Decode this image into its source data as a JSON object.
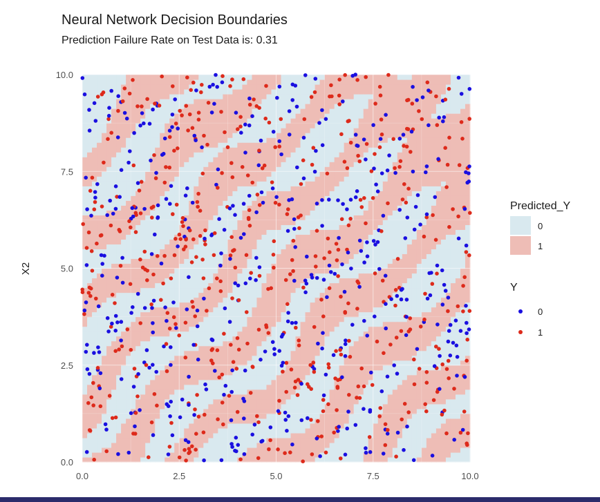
{
  "chart_data": {
    "type": "scatter",
    "title": "Neural Network Decision Boundaries",
    "subtitle": "Prediction Failure Rate on Test Data is: 0.31",
    "xlabel": "",
    "ylabel": "X2",
    "xlim": [
      0,
      10
    ],
    "ylim": [
      0,
      10
    ],
    "x_ticks": [
      "0.0",
      "2.5",
      "5.0",
      "7.5",
      "10.0"
    ],
    "y_ticks": [
      "0.0",
      "2.5",
      "5.0",
      "7.5",
      "10.0"
    ],
    "grid": true,
    "background_layer": {
      "name": "Predicted_Y",
      "description_type": "decision-regions",
      "classes": [
        "0",
        "1"
      ],
      "colors": {
        "0": "#d9e9ef",
        "1": "#eebdb6"
      },
      "class1_diagonal_bands": [
        {
          "offset": 7.8,
          "halfwidth": 0.55
        },
        {
          "offset": 5.6,
          "halfwidth": 0.6
        },
        {
          "offset": 3.6,
          "halfwidth": 0.55
        },
        {
          "offset": 1.6,
          "halfwidth": 0.5
        },
        {
          "offset": -0.4,
          "halfwidth": 0.6
        },
        {
          "offset": -2.4,
          "halfwidth": 0.55
        },
        {
          "offset": -4.5,
          "halfwidth": 0.6
        },
        {
          "offset": -6.6,
          "halfwidth": 0.55
        },
        {
          "offset": -8.6,
          "halfwidth": 0.5
        }
      ]
    },
    "series": [
      {
        "name": "0",
        "color": "#1a0fe0"
      },
      {
        "name": "1",
        "color": "#dd2a1b"
      }
    ],
    "points_per_class_approx": 500,
    "legend": {
      "position": "right",
      "groups": [
        {
          "title": "Predicted_Y",
          "entries": [
            "0",
            "1"
          ]
        },
        {
          "title": "Y",
          "entries": [
            "0",
            "1"
          ]
        }
      ]
    }
  }
}
